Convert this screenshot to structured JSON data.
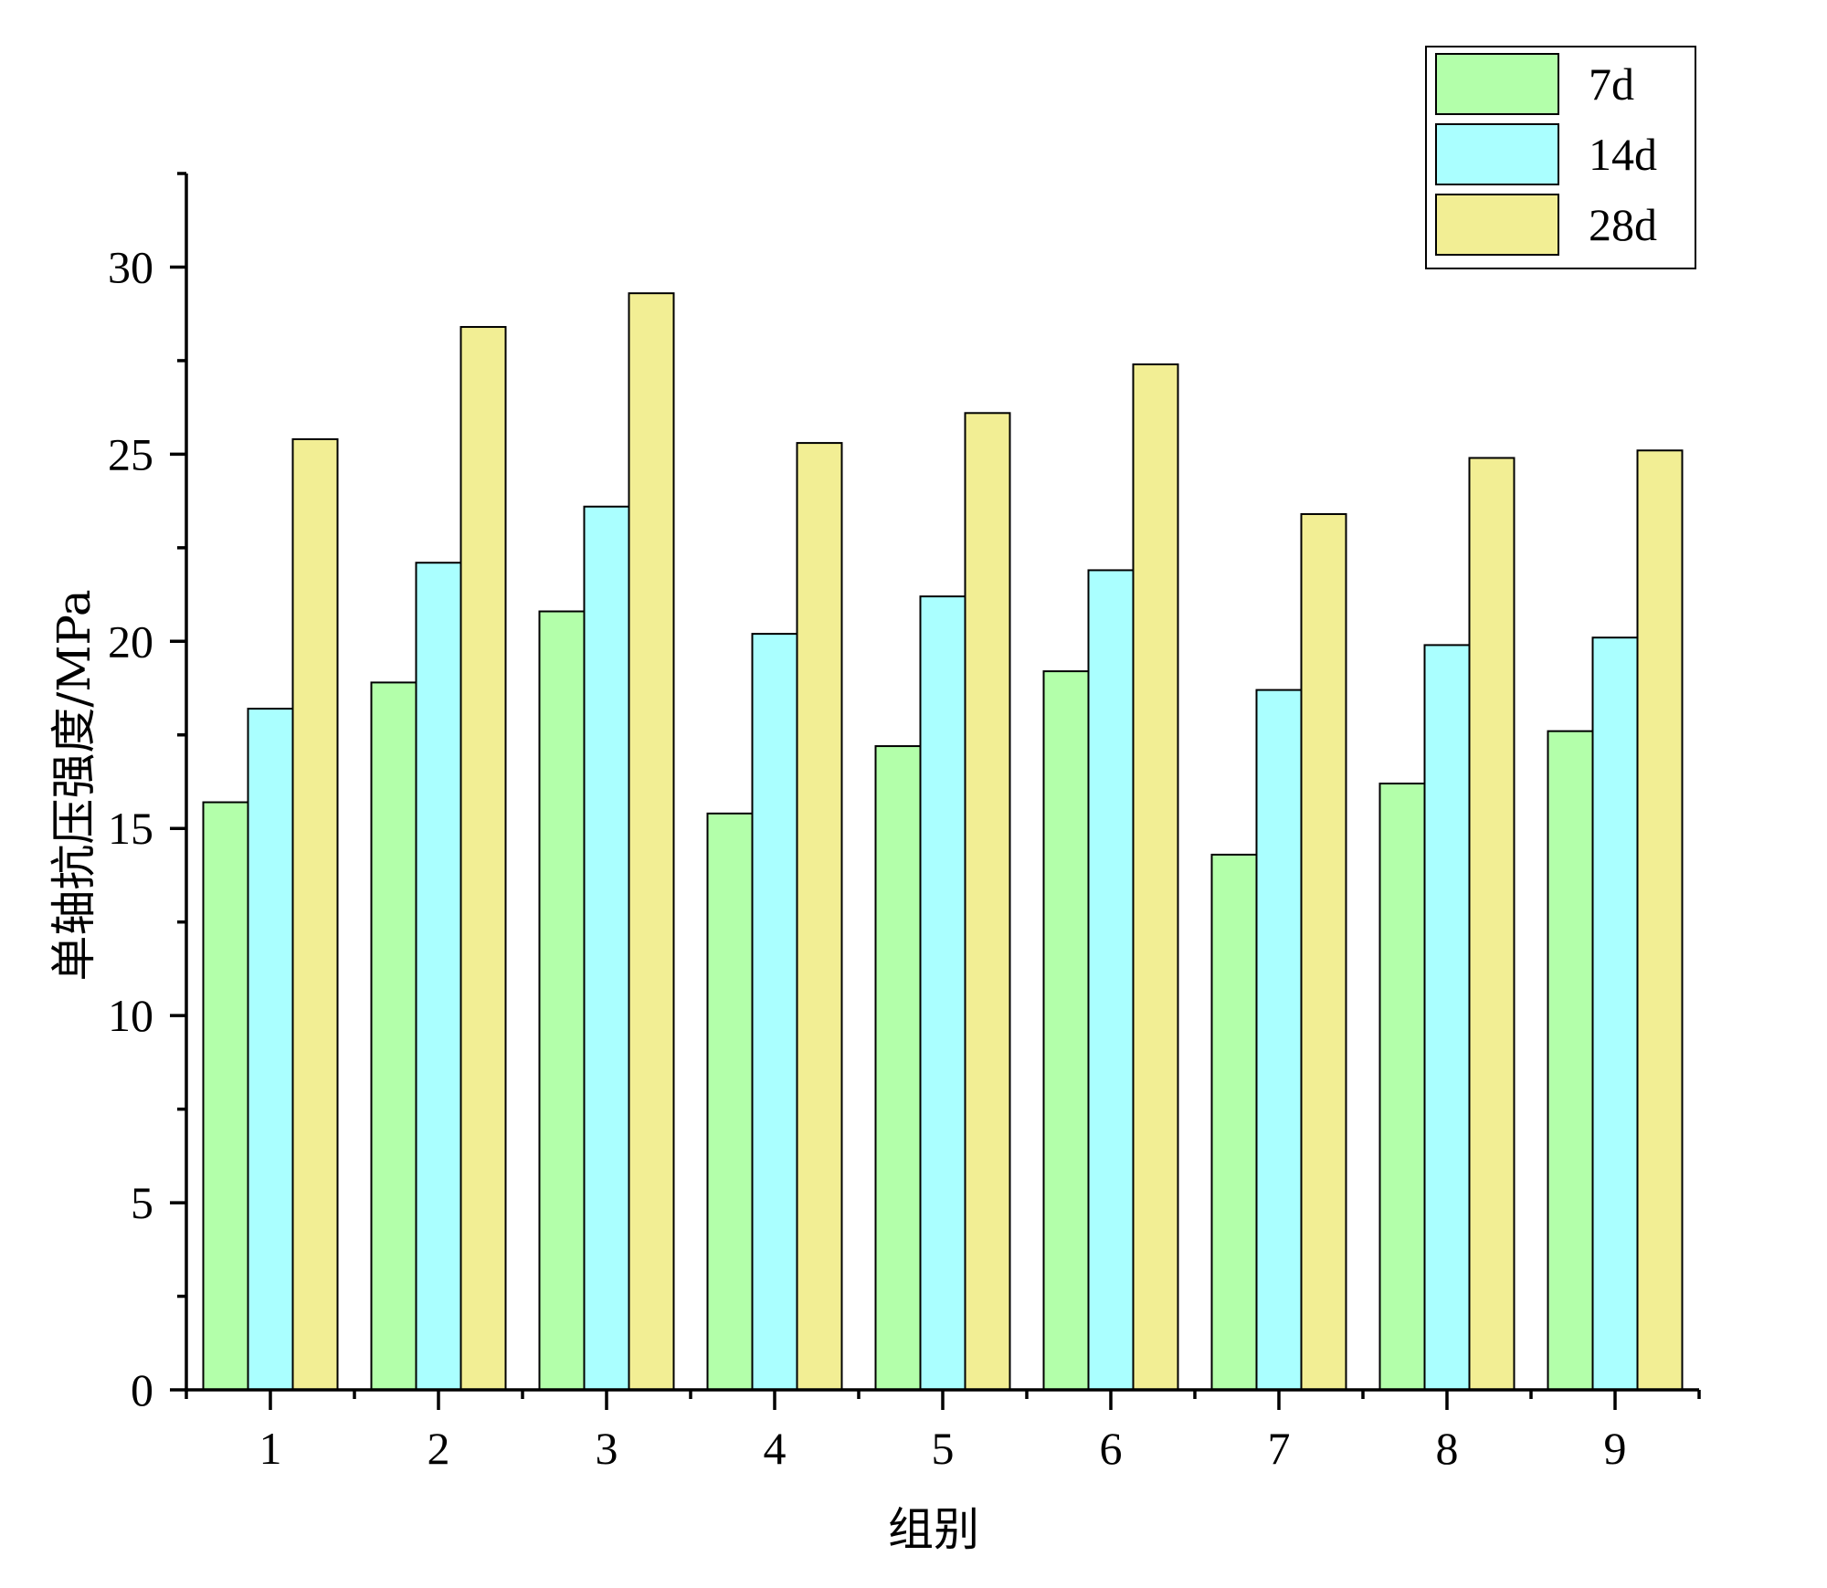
{
  "chart_data": {
    "type": "bar",
    "title": "",
    "xlabel": "组别",
    "ylabel": "单轴抗压强度/MPa",
    "categories": [
      "1",
      "2",
      "3",
      "4",
      "5",
      "6",
      "7",
      "8",
      "9"
    ],
    "ylim": [
      0,
      32.5
    ],
    "yticks": [
      0,
      5,
      10,
      15,
      20,
      25,
      30
    ],
    "yticklabels": [
      "0",
      "5",
      "10",
      "15",
      "20",
      "25",
      "30"
    ],
    "grid": false,
    "legend_position": "top-right",
    "series": [
      {
        "name": "7d",
        "color": "#b3ffaa",
        "values": [
          15.7,
          18.9,
          20.8,
          15.4,
          17.2,
          19.2,
          14.3,
          16.2,
          17.6
        ]
      },
      {
        "name": "14d",
        "color": "#aaffff",
        "values": [
          18.2,
          22.1,
          23.6,
          20.2,
          21.2,
          21.9,
          18.7,
          19.9,
          20.1
        ]
      },
      {
        "name": "28d",
        "color": "#f2ee94",
        "values": [
          25.4,
          28.4,
          29.3,
          25.3,
          26.1,
          27.4,
          23.4,
          24.9,
          25.1
        ]
      }
    ]
  }
}
